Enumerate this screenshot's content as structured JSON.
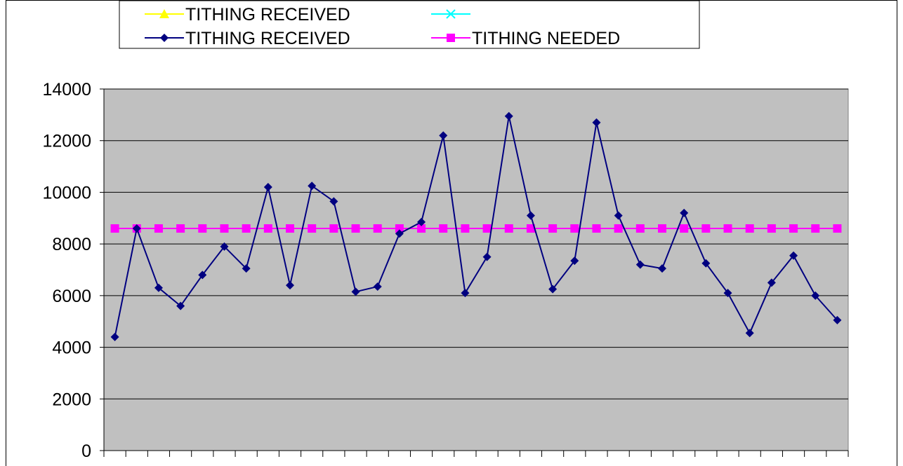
{
  "chart_data": {
    "type": "line",
    "title": "",
    "xlabel": "",
    "ylabel": "",
    "ylim": [
      0,
      14000
    ],
    "yticks": [
      "0",
      "2000",
      "4000",
      "6000",
      "8000",
      "10000",
      "12000",
      "14000"
    ],
    "grid": "horizontal",
    "plot_background": "#c0c0c0",
    "legend_position": "top",
    "series": [
      {
        "name": "TITHING RECEIVED",
        "color": "#ffff00",
        "marker": "triangle",
        "values": []
      },
      {
        "name": "",
        "color": "#00ffff",
        "marker": "x",
        "values": []
      },
      {
        "name": "TITHING RECEIVED",
        "color": "#000080",
        "marker": "diamond",
        "values": [
          4400,
          8600,
          6300,
          5600,
          6800,
          7900,
          7050,
          10200,
          6400,
          10250,
          9650,
          6150,
          6350,
          8400,
          8850,
          12200,
          6100,
          7500,
          12950,
          9100,
          6250,
          7350,
          12700,
          9100,
          7200,
          7050,
          9200,
          7250,
          6100,
          4550,
          6500,
          7550,
          6000,
          5050
        ]
      },
      {
        "name": "TITHING NEEDED",
        "color": "#ff00ff",
        "marker": "square",
        "values": [
          8600,
          8600,
          8600,
          8600,
          8600,
          8600,
          8600,
          8600,
          8600,
          8600,
          8600,
          8600,
          8600,
          8600,
          8600,
          8600,
          8600,
          8600,
          8600,
          8600,
          8600,
          8600,
          8600,
          8600,
          8600,
          8600,
          8600,
          8600,
          8600,
          8600,
          8600,
          8600,
          8600,
          8600
        ]
      }
    ]
  }
}
